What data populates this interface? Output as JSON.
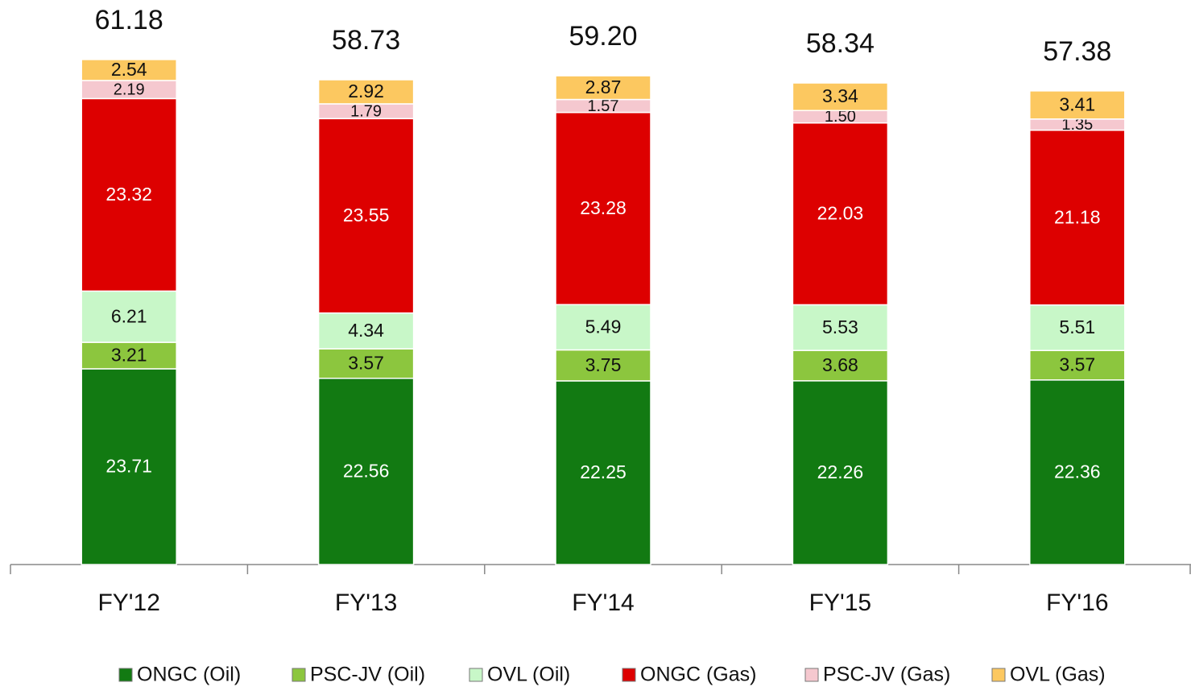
{
  "chart_data": {
    "type": "stacked_bar",
    "categories": [
      "FY'12",
      "FY'13",
      "FY'14",
      "FY'15",
      "FY'16"
    ],
    "series": [
      {
        "name": "ONGC (Oil)",
        "color": "#127a12",
        "values": [
          23.71,
          22.56,
          22.25,
          22.26,
          22.36
        ]
      },
      {
        "name": "PSC-JV (Oil)",
        "color": "#8cc63e",
        "values": [
          3.21,
          3.57,
          3.75,
          3.68,
          3.57
        ]
      },
      {
        "name": "OVL (Oil)",
        "color": "#c8f7c8",
        "values": [
          6.21,
          4.34,
          5.49,
          5.53,
          5.51
        ]
      },
      {
        "name": "ONGC (Gas)",
        "color": "#dd0000",
        "values": [
          23.32,
          23.55,
          23.28,
          22.03,
          21.18
        ]
      },
      {
        "name": "PSC-JV (Gas)",
        "color": "#f5c8cf",
        "values": [
          2.19,
          1.79,
          1.57,
          1.5,
          1.35
        ]
      },
      {
        "name": "OVL (Gas)",
        "color": "#fcc860",
        "values": [
          2.54,
          2.92,
          2.87,
          3.34,
          3.41
        ]
      }
    ],
    "totals": {
      "values": [
        61.18,
        58.73,
        59.2,
        58.34,
        57.38
      ],
      "value_labels": [
        "61.18",
        "58.73",
        "59.20",
        "58.34",
        "57.38"
      ]
    },
    "series_value_labels": [
      [
        "23.71",
        "22.56",
        "22.25",
        "22.26",
        "22.36"
      ],
      [
        "3.21",
        "3.57",
        "3.75",
        "3.68",
        "3.57"
      ],
      [
        "6.21",
        "4.34",
        "5.49",
        "5.53",
        "5.51"
      ],
      [
        "23.32",
        "23.55",
        "23.28",
        "22.03",
        "21.18"
      ],
      [
        "2.19",
        "1.79",
        "1.57",
        "1.50",
        "1.35"
      ],
      [
        "2.54",
        "2.92",
        "2.87",
        "3.34",
        "3.41"
      ]
    ],
    "legend": "bottom"
  }
}
